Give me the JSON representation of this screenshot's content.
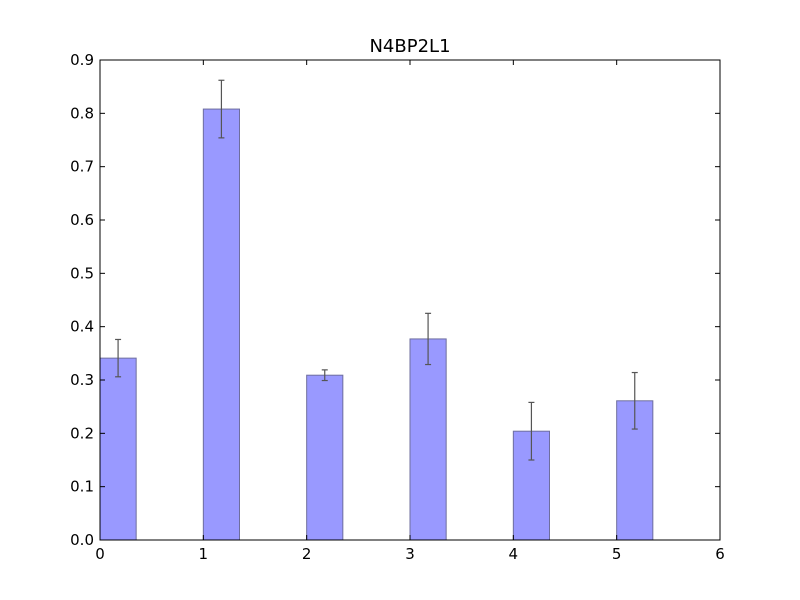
{
  "chart_data": {
    "type": "bar",
    "title": "N4BP2L1",
    "xlabel": "",
    "ylabel": "",
    "xlim": [
      0,
      6
    ],
    "ylim": [
      0,
      0.9
    ],
    "x_ticks": [
      "0",
      "1",
      "2",
      "3",
      "4",
      "5",
      "6"
    ],
    "y_ticks": [
      "0.0",
      "0.1",
      "0.2",
      "0.3",
      "0.4",
      "0.5",
      "0.6",
      "0.7",
      "0.8",
      "0.9"
    ],
    "bar_width": 0.35,
    "bars": [
      {
        "x": 0,
        "value": 0.341,
        "error": 0.035
      },
      {
        "x": 1,
        "value": 0.808,
        "error": 0.054
      },
      {
        "x": 2,
        "value": 0.309,
        "error": 0.01
      },
      {
        "x": 3,
        "value": 0.377,
        "error": 0.048
      },
      {
        "x": 4,
        "value": 0.204,
        "error": 0.054
      },
      {
        "x": 5,
        "value": 0.261,
        "error": 0.053
      }
    ],
    "grid": false,
    "legend": "none",
    "colors": {
      "bar_fill": "#9999ff",
      "bar_edge": "#6e6e9e",
      "error_bar": "#555555",
      "axes": "#000000"
    }
  }
}
